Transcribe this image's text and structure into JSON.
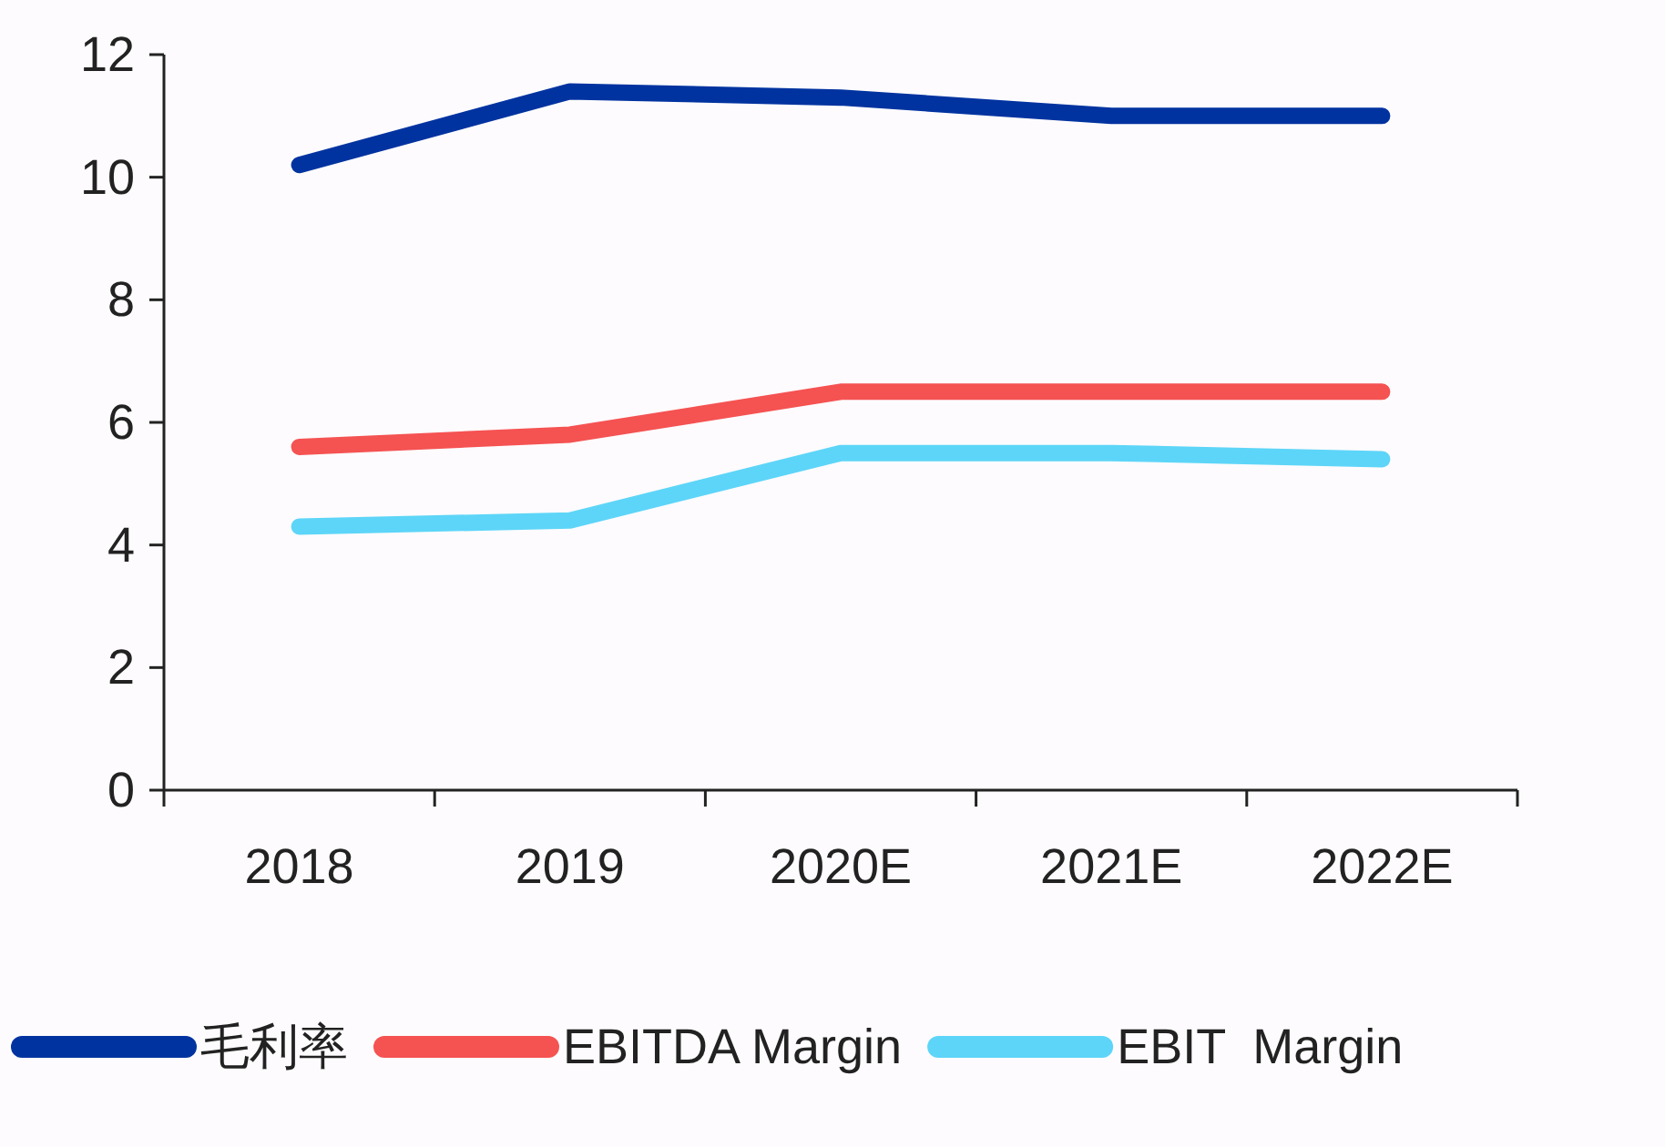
{
  "chart_data": {
    "type": "line",
    "categories": [
      "2018",
      "2019",
      "2020E",
      "2021E",
      "2022E"
    ],
    "series": [
      {
        "name": "毛利率",
        "color": "#0033a0",
        "values": [
          10.2,
          11.4,
          11.3,
          11.0,
          11.0
        ]
      },
      {
        "name": "EBITDA Margin",
        "color": "#f55252",
        "values": [
          5.6,
          5.8,
          6.5,
          6.5,
          6.5
        ]
      },
      {
        "name": "EBIT  Margin",
        "color": "#5dd5f8",
        "values": [
          4.3,
          4.4,
          5.5,
          5.5,
          5.4
        ]
      }
    ],
    "ylim": [
      0,
      12
    ],
    "yticks": [
      0,
      2,
      4,
      6,
      8,
      10,
      12
    ],
    "legend": "bottom",
    "grid": false,
    "marker": "none",
    "line_style": "solid"
  }
}
